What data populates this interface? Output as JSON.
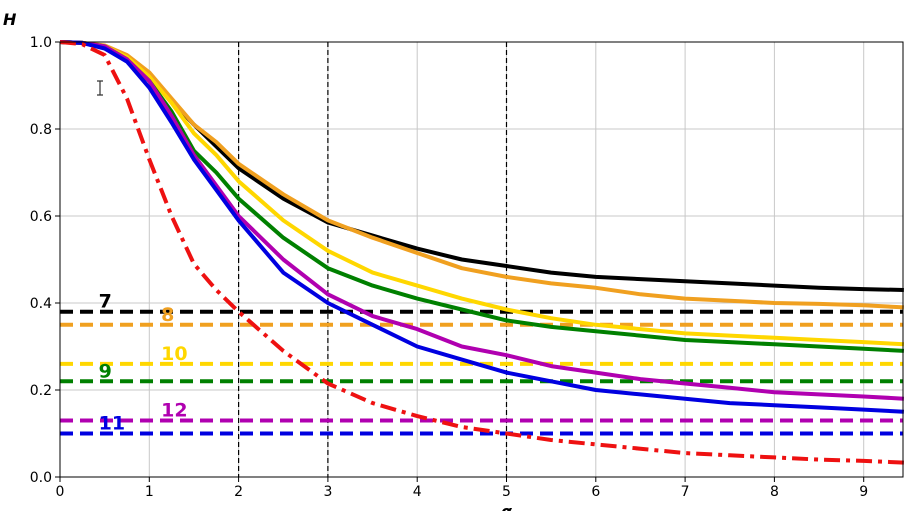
{
  "chart_data": {
    "type": "line",
    "title": "",
    "xlabel": "α",
    "ylabel": "H",
    "xlim": [
      0,
      9.45
    ],
    "ylim": [
      0,
      1.0
    ],
    "x_ticks": [
      "0",
      "1",
      "2",
      "3",
      "4",
      "5",
      "6",
      "7",
      "8",
      "9"
    ],
    "y_ticks": [
      "0.0",
      "0.2",
      "0.4",
      "0.6",
      "0.8",
      "1.0"
    ],
    "grid": true,
    "vertical_dashed_lines": [
      2,
      3,
      5
    ],
    "x": [
      0,
      0.25,
      0.5,
      0.75,
      1.0,
      1.25,
      1.5,
      1.75,
      2.0,
      2.5,
      3.0,
      3.5,
      4.0,
      4.5,
      5.0,
      5.5,
      6.0,
      6.5,
      7.0,
      7.5,
      8.0,
      8.5,
      9.0,
      9.45
    ],
    "series": [
      {
        "color": "#000000",
        "values": [
          1.0,
          0.998,
          0.99,
          0.965,
          0.92,
          0.865,
          0.81,
          0.76,
          0.71,
          0.64,
          0.585,
          0.555,
          0.525,
          0.5,
          0.485,
          0.47,
          0.46,
          0.455,
          0.45,
          0.445,
          0.44,
          0.435,
          0.432,
          0.43
        ]
      },
      {
        "color": "#F0A020",
        "values": [
          1.0,
          0.998,
          0.992,
          0.97,
          0.93,
          0.87,
          0.81,
          0.77,
          0.72,
          0.65,
          0.59,
          0.55,
          0.515,
          0.48,
          0.46,
          0.445,
          0.435,
          0.42,
          0.41,
          0.405,
          0.4,
          0.398,
          0.395,
          0.39
        ]
      },
      {
        "color": "#FFD700",
        "values": [
          1.0,
          0.998,
          0.99,
          0.965,
          0.92,
          0.86,
          0.79,
          0.74,
          0.68,
          0.59,
          0.52,
          0.47,
          0.44,
          0.41,
          0.385,
          0.365,
          0.35,
          0.34,
          0.33,
          0.325,
          0.32,
          0.315,
          0.31,
          0.305
        ]
      },
      {
        "color": "#008000",
        "values": [
          1.0,
          0.998,
          0.99,
          0.96,
          0.91,
          0.84,
          0.75,
          0.7,
          0.64,
          0.55,
          0.48,
          0.44,
          0.41,
          0.385,
          0.36,
          0.345,
          0.335,
          0.325,
          0.315,
          0.31,
          0.305,
          0.3,
          0.295,
          0.29
        ]
      },
      {
        "color": "#B000B0",
        "values": [
          1.0,
          0.998,
          0.99,
          0.96,
          0.91,
          0.83,
          0.74,
          0.67,
          0.6,
          0.5,
          0.42,
          0.37,
          0.34,
          0.3,
          0.28,
          0.255,
          0.24,
          0.225,
          0.215,
          0.205,
          0.195,
          0.19,
          0.185,
          0.18
        ]
      },
      {
        "color": "#0000E0",
        "values": [
          1.0,
          0.998,
          0.985,
          0.955,
          0.895,
          0.815,
          0.73,
          0.66,
          0.59,
          0.47,
          0.4,
          0.35,
          0.3,
          0.27,
          0.24,
          0.22,
          0.2,
          0.19,
          0.18,
          0.17,
          0.165,
          0.16,
          0.155,
          0.15
        ]
      },
      {
        "color": "#EE1111",
        "style": "dashdot",
        "values": [
          1.0,
          0.995,
          0.97,
          0.87,
          0.73,
          0.6,
          0.49,
          0.43,
          0.38,
          0.29,
          0.215,
          0.17,
          0.14,
          0.115,
          0.1,
          0.085,
          0.075,
          0.065,
          0.055,
          0.05,
          0.045,
          0.04,
          0.037,
          0.033
        ]
      }
    ],
    "horizontal_lines": [
      {
        "label": "7",
        "y": 0.38,
        "color": "#000000",
        "label_x": 0.5
      },
      {
        "label": "8",
        "y": 0.35,
        "color": "#F0A020",
        "label_x": 1.2
      },
      {
        "label": "10",
        "y": 0.26,
        "color": "#FFD700",
        "label_x": 1.2
      },
      {
        "label": "9",
        "y": 0.22,
        "color": "#008000",
        "label_x": 0.5
      },
      {
        "label": "12",
        "y": 0.13,
        "color": "#B000B0",
        "label_x": 1.2
      },
      {
        "label": "11",
        "y": 0.1,
        "color": "#0000E0",
        "label_x": 0.5
      }
    ]
  }
}
